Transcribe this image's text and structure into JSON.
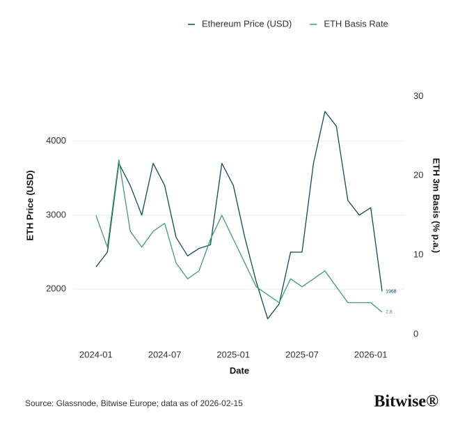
{
  "chart_data": {
    "type": "line",
    "x_label": "Date",
    "y_label": "ETH Price (USD)",
    "y2_label": "ETH 3m Basis (% p.a.)",
    "source": "Source: Glassnode, Bitwise Europe; data as of 2026-02-15",
    "brand": "Bitwise®",
    "x": [
      "2024-01",
      "2024-02",
      "2024-03",
      "2024-04",
      "2024-05",
      "2024-06",
      "2024-07",
      "2024-08",
      "2024-09",
      "2024-10",
      "2024-11",
      "2024-12",
      "2025-01",
      "2025-02",
      "2025-03",
      "2025-04",
      "2025-05",
      "2025-06",
      "2025-07",
      "2025-08",
      "2025-09",
      "2025-10",
      "2025-11",
      "2025-12",
      "2026-01",
      "2026-02"
    ],
    "xlim": [
      "2023-11",
      "2026-04"
    ],
    "xticks": [
      "2024-01",
      "2024-07",
      "2025-01",
      "2025-07",
      "2026-01"
    ],
    "ylim": [
      1390,
      4870
    ],
    "yticks": [
      2000,
      3000,
      4000
    ],
    "y2lim": [
      0,
      32.5
    ],
    "y2ticks": [
      0,
      10,
      20,
      30
    ],
    "grid": true,
    "legend": "top",
    "series": [
      {
        "name": "Ethereum Price (USD)",
        "color": "#0e4a5c",
        "values": [
          2300,
          2500,
          3700,
          3400,
          3000,
          3700,
          3400,
          2700,
          2450,
          2550,
          2600,
          3700,
          3400,
          2700,
          2100,
          1600,
          1800,
          2500,
          2500,
          3700,
          4400,
          4200,
          3200,
          3000,
          3100,
          1968
        ]
      },
      {
        "name": "ETH Basis Rate",
        "color": "#3f9c6b",
        "axis": "y2",
        "values": [
          15,
          11,
          22,
          13,
          11,
          13,
          14,
          9,
          7,
          8,
          12,
          15,
          12,
          9,
          6,
          5,
          4,
          7,
          6,
          7,
          8,
          6,
          4,
          4,
          4,
          2.8
        ]
      }
    ]
  }
}
